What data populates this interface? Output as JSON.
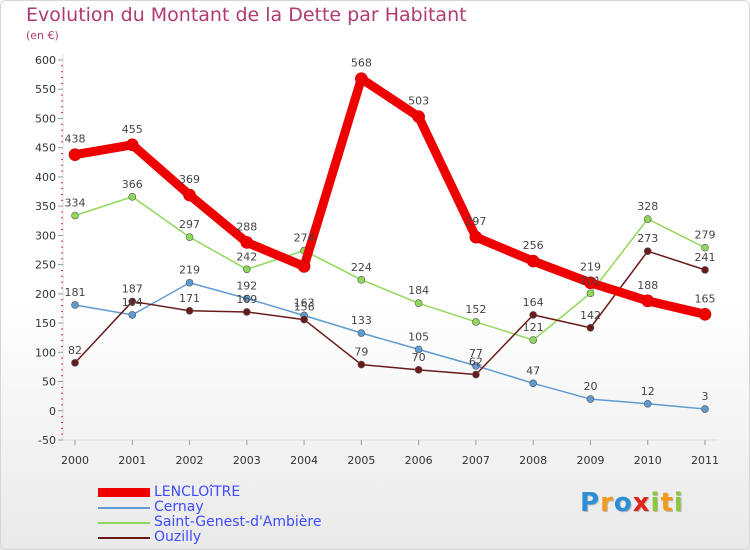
{
  "chart_data": {
    "type": "line",
    "title": "Evolution du Montant de la Dette par Habitant",
    "subtitle": "(en €)",
    "xlabel": "",
    "ylabel": "",
    "x": [
      "2000",
      "2001",
      "2002",
      "2003",
      "2004",
      "2005",
      "2006",
      "2007",
      "2008",
      "2009",
      "2010",
      "2011"
    ],
    "ylim": [
      -50,
      600
    ],
    "yticks": [
      -50,
      0,
      50,
      100,
      150,
      200,
      250,
      300,
      350,
      400,
      450,
      500,
      550,
      600
    ],
    "grid": false,
    "legend_position": "bottom-left",
    "series": [
      {
        "name": "LENCLOîTRE",
        "color": "#ee0000",
        "values": [
          438,
          455,
          369,
          288,
          247,
          568,
          503,
          297,
          256,
          219,
          188,
          165
        ],
        "labels": [
          "438",
          "455",
          "369",
          "288",
          "",
          "568",
          "503",
          "297",
          "256",
          "219",
          "188",
          "165"
        ]
      },
      {
        "name": "Cernay",
        "color": "#5f9bd2",
        "values": [
          181,
          164,
          219,
          192,
          163,
          133,
          105,
          77,
          47,
          20,
          12,
          3
        ],
        "labels": [
          "181",
          "164",
          "219",
          "192",
          "163",
          "133",
          "105",
          "77",
          "47",
          "20",
          "12",
          "3"
        ]
      },
      {
        "name": "Saint-Genest-d'Ambière",
        "color": "#8fd95a",
        "values": [
          334,
          366,
          297,
          242,
          274,
          224,
          184,
          152,
          121,
          201,
          328,
          279
        ],
        "labels": [
          "334",
          "366",
          "297",
          "242",
          "274",
          "224",
          "184",
          "152",
          "121",
          "201",
          "328",
          "279"
        ]
      },
      {
        "name": "Ouzilly",
        "color": "#6b1a1a",
        "values": [
          82,
          187,
          171,
          169,
          156,
          79,
          70,
          62,
          164,
          142,
          273,
          241
        ],
        "labels": [
          "82",
          "187",
          "171",
          "169",
          "156",
          "79",
          "70",
          "62",
          "164",
          "142",
          "273",
          "241"
        ]
      }
    ]
  },
  "logo": {
    "letters": [
      "P",
      "r",
      "o",
      "x",
      "i",
      "t",
      "i"
    ],
    "colors": [
      "#2c8fd6",
      "#f29b1b",
      "#2c8fd6",
      "#e2231a",
      "#8cc63f",
      "#f29b1b",
      "#8cc63f"
    ]
  }
}
